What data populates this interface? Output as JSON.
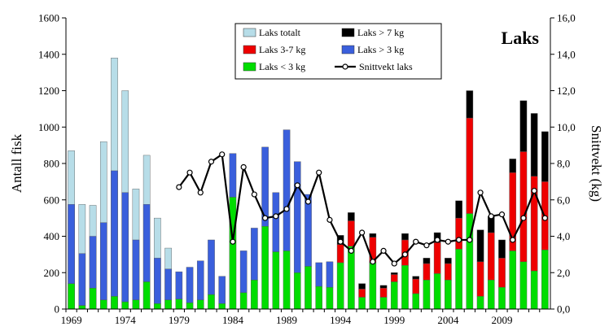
{
  "chart_data": {
    "type": "bar",
    "title": "Laks",
    "ylabel": "Antall fisk",
    "y2label": "Snittvekt (kg)",
    "ylim": [
      0,
      1600
    ],
    "y2lim": [
      0,
      16
    ],
    "yticks": [
      "0",
      "200",
      "400",
      "600",
      "800",
      "1000",
      "1200",
      "1400",
      "1600"
    ],
    "y2ticks": [
      "0,0",
      "2,0",
      "4,0",
      "6,0",
      "8,0",
      "10,0",
      "12,0",
      "14,0",
      "16,0"
    ],
    "xticks": [
      "1969",
      "1974",
      "1979",
      "1984",
      "1989",
      "1994",
      "1999",
      "2004",
      "2009"
    ],
    "grid": false,
    "legend_position": "top-right",
    "legend": {
      "total": "Laks totalt",
      "mid": "Laks 3-7 kg",
      "small": "Laks < 3 kg",
      "big": "Laks > 7 kg",
      "over3": "Laks > 3 kg",
      "mean": "Snittvekt laks"
    },
    "colors": {
      "total": "#b7dde8",
      "small": "#00dd00",
      "over3": "#3a5fdc",
      "mid": "#ee0000",
      "big": "#000000",
      "line": "#000000"
    },
    "years": [
      1969,
      1970,
      1971,
      1972,
      1973,
      1974,
      1975,
      1976,
      1977,
      1978,
      1979,
      1980,
      1981,
      1982,
      1983,
      1984,
      1985,
      1986,
      1987,
      1988,
      1989,
      1990,
      1991,
      1992,
      1993,
      1994,
      1995,
      1996,
      1997,
      1998,
      1999,
      2000,
      2001,
      2002,
      2003,
      2004,
      2005,
      2006,
      2007,
      2008,
      2009,
      2010,
      2011,
      2012,
      2013
    ],
    "series": [
      {
        "name": "Laks totalt",
        "values": [
          870,
          575,
          570,
          920,
          1380,
          1200,
          660,
          845,
          500,
          335,
          null,
          null,
          null,
          null,
          null,
          null,
          null,
          null,
          null,
          null,
          null,
          null,
          null,
          null,
          null,
          null,
          null,
          null,
          null,
          null,
          null,
          null,
          null,
          null,
          null,
          null,
          null,
          null,
          null,
          null,
          null,
          null,
          null,
          null,
          null
        ]
      },
      {
        "name": "Laks < 3 kg",
        "values": [
          140,
          20,
          115,
          50,
          70,
          40,
          50,
          150,
          30,
          50,
          55,
          35,
          50,
          80,
          30,
          615,
          90,
          160,
          455,
          315,
          320,
          200,
          235,
          125,
          120,
          255,
          345,
          65,
          255,
          65,
          150,
          240,
          85,
          160,
          195,
          160,
          330,
          525,
          70,
          160,
          120,
          320,
          260,
          210,
          325
        ]
      },
      {
        "name": "Laks > 3 kg",
        "values": [
          435,
          285,
          285,
          425,
          690,
          600,
          330,
          425,
          250,
          170,
          150,
          195,
          215,
          300,
          150,
          240,
          230,
          285,
          435,
          325,
          665,
          610,
          395,
          130,
          140,
          null,
          null,
          null,
          null,
          null,
          null,
          null,
          null,
          null,
          null,
          null,
          null,
          null,
          null,
          null,
          null,
          null,
          null,
          null,
          null
        ]
      },
      {
        "name": "Laks 3-7 kg",
        "values": [
          null,
          null,
          null,
          null,
          null,
          null,
          null,
          null,
          null,
          null,
          null,
          null,
          null,
          null,
          null,
          null,
          null,
          null,
          null,
          null,
          null,
          null,
          null,
          null,
          null,
          100,
          140,
          45,
          140,
          50,
          40,
          140,
          80,
          90,
          170,
          90,
          170,
          525,
          190,
          260,
          160,
          430,
          605,
          520,
          375
        ]
      },
      {
        "name": "Laks > 7 kg",
        "values": [
          null,
          null,
          null,
          null,
          null,
          null,
          null,
          null,
          null,
          null,
          null,
          null,
          null,
          null,
          null,
          null,
          null,
          null,
          null,
          null,
          null,
          null,
          null,
          null,
          0,
          50,
          45,
          30,
          20,
          15,
          10,
          35,
          15,
          30,
          55,
          30,
          95,
          150,
          175,
          90,
          100,
          75,
          280,
          345,
          275
        ]
      },
      {
        "name": "Snittvekt laks",
        "axis": "y2",
        "values": [
          null,
          null,
          null,
          null,
          null,
          null,
          null,
          null,
          null,
          null,
          6.7,
          7.5,
          6.4,
          8.1,
          8.5,
          3.7,
          7.8,
          6.3,
          5.0,
          5.1,
          5.5,
          6.8,
          5.9,
          7.5,
          4.9,
          3.7,
          3.2,
          4.2,
          2.6,
          3.2,
          2.5,
          3.0,
          3.7,
          3.5,
          3.8,
          3.7,
          3.8,
          3.8,
          6.4,
          5.1,
          5.2,
          3.8,
          5.0,
          6.5,
          5.0
        ]
      }
    ]
  }
}
